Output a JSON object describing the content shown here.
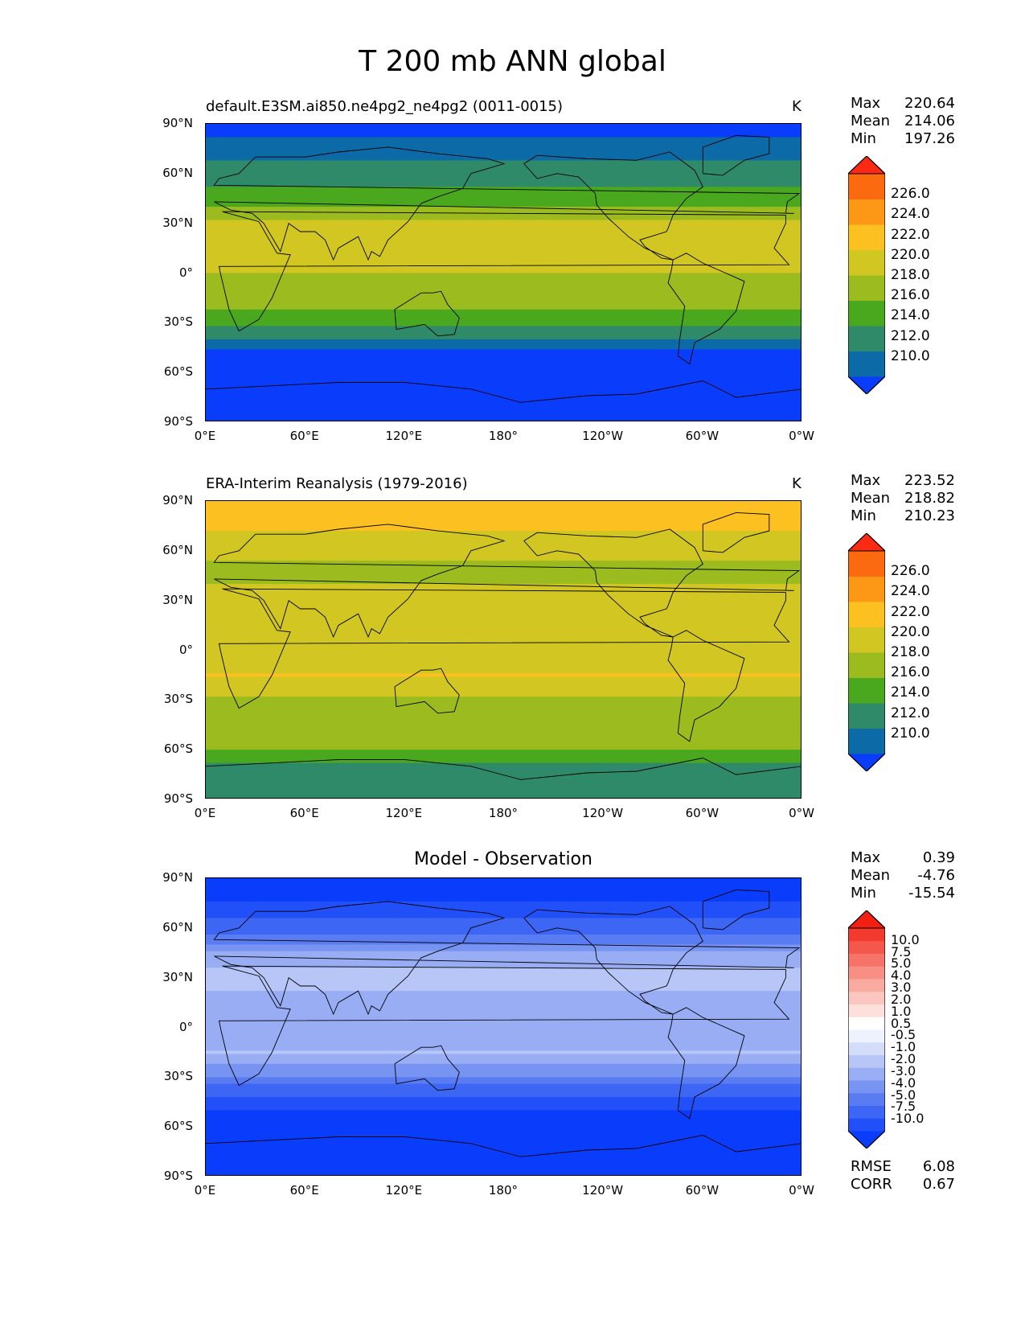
{
  "title": "T 200 mb ANN global",
  "ylabels": [
    "90°N",
    "60°N",
    "30°N",
    "0°",
    "30°S",
    "60°S",
    "90°S"
  ],
  "xlabels": [
    "0°E",
    "60°E",
    "120°E",
    "180°",
    "120°W",
    "60°W",
    "0°W"
  ],
  "panels": [
    {
      "title": "default.E3SM.ai850.ne4pg2_ne4pg2 (0011-0015)",
      "units": "K",
      "stats": {
        "max_label": "Max",
        "max": "220.64",
        "mean_label": "Mean",
        "mean": "214.06",
        "min_label": "Min",
        "min": "197.26"
      },
      "colorbar": {
        "colors": [
          "#0a3cfb",
          "#0c6aa6",
          "#2f8a6a",
          "#4aa81e",
          "#9bbb1e",
          "#d2c622",
          "#fcc020",
          "#fc9815",
          "#fc6a10",
          "#fc2a12"
        ],
        "labels": [
          "210.0",
          "212.0",
          "214.0",
          "216.0",
          "218.0",
          "220.0",
          "222.0",
          "224.0",
          "226.0"
        ]
      }
    },
    {
      "title": "ERA-Interim Reanalysis (1979-2016)",
      "units": "K",
      "stats": {
        "max_label": "Max",
        "max": "223.52",
        "mean_label": "Mean",
        "mean": "218.82",
        "min_label": "Min",
        "min": "210.23"
      },
      "colorbar": {
        "colors": [
          "#0a3cfb",
          "#0c6aa6",
          "#2f8a6a",
          "#4aa81e",
          "#9bbb1e",
          "#d2c622",
          "#fcc020",
          "#fc9815",
          "#fc6a10",
          "#fc2a12"
        ],
        "labels": [
          "210.0",
          "212.0",
          "214.0",
          "216.0",
          "218.0",
          "220.0",
          "222.0",
          "224.0",
          "226.0"
        ]
      }
    },
    {
      "title": "Model - Observation",
      "units": "",
      "stats": {
        "max_label": "Max",
        "max": "0.39",
        "mean_label": "Mean",
        "mean": "-4.76",
        "min_label": "Min",
        "min": "-15.54"
      },
      "colorbar": {
        "colors": [
          "#0a3cfb",
          "#2250f8",
          "#3e66f5",
          "#5a7cf2",
          "#7894f2",
          "#98adf4",
          "#b7c6f6",
          "#d3ddf9",
          "#eef2fd",
          "#ffffff",
          "#fde0dc",
          "#fbc6bf",
          "#f9aba2",
          "#f78f85",
          "#f57368",
          "#f4574b",
          "#f23b2e",
          "#f21f12"
        ],
        "labels": [
          "-10.0",
          "-7.5",
          "-5.0",
          "-4.0",
          "-3.0",
          "-2.0",
          "-1.0",
          "-0.5",
          "0.5",
          "1.0",
          "2.0",
          "3.0",
          "4.0",
          "5.0",
          "7.5",
          "10.0"
        ]
      },
      "rmse_label": "RMSE",
      "rmse": "6.08",
      "corr_label": "CORR",
      "corr": "0.67"
    }
  ],
  "chart_data": [
    {
      "type": "heatmap",
      "title": "default.E3SM.ai850.ne4pg2_ne4pg2 (0011-0015)",
      "units": "K",
      "xlabel": "",
      "ylabel": "",
      "x_ticks": [
        "0°E",
        "60°E",
        "120°E",
        "180°",
        "120°W",
        "60°W",
        "0°W"
      ],
      "y_ticks": [
        "90°N",
        "60°N",
        "30°N",
        "0°",
        "30°S",
        "60°S",
        "90°S"
      ],
      "xlim": [
        0,
        360
      ],
      "ylim": [
        -90,
        90
      ],
      "levels": [
        210,
        212,
        214,
        216,
        218,
        220,
        222,
        224,
        226
      ],
      "stats": {
        "max": 220.64,
        "mean": 214.06,
        "min": 197.26
      },
      "zonal_profile": {
        "lat": [
          90,
          75,
          60,
          45,
          30,
          15,
          0,
          -15,
          -30,
          -38,
          -45,
          -60,
          -75,
          -90
        ],
        "value": [
          209,
          211,
          213,
          215,
          218.5,
          219,
          218,
          217,
          214.5,
          212.5,
          210,
          209,
          209,
          209
        ]
      }
    },
    {
      "type": "heatmap",
      "title": "ERA-Interim Reanalysis (1979-2016)",
      "units": "K",
      "xlabel": "",
      "ylabel": "",
      "x_ticks": [
        "0°E",
        "60°E",
        "120°E",
        "180°",
        "120°W",
        "60°W",
        "0°W"
      ],
      "y_ticks": [
        "90°N",
        "60°N",
        "30°N",
        "0°",
        "30°S",
        "60°S",
        "90°S"
      ],
      "xlim": [
        0,
        360
      ],
      "ylim": [
        -90,
        90
      ],
      "levels": [
        210,
        212,
        214,
        216,
        218,
        220,
        222,
        224,
        226
      ],
      "stats": {
        "max": 223.52,
        "mean": 218.82,
        "min": 210.23
      },
      "zonal_profile": {
        "lat": [
          90,
          75,
          60,
          45,
          30,
          15,
          0,
          -15,
          -30,
          -45,
          -60,
          -68,
          -75,
          -90
        ],
        "value": [
          221,
          220.5,
          218.5,
          217,
          219.5,
          219,
          218.5,
          220,
          217.5,
          217.5,
          216,
          214,
          212.5,
          212.5
        ]
      }
    },
    {
      "type": "heatmap",
      "title": "Model - Observation",
      "units": "",
      "xlabel": "",
      "ylabel": "",
      "x_ticks": [
        "0°E",
        "60°E",
        "120°E",
        "180°",
        "120°W",
        "60°W",
        "0°W"
      ],
      "y_ticks": [
        "90°N",
        "60°N",
        "30°N",
        "0°",
        "30°S",
        "60°S",
        "90°S"
      ],
      "xlim": [
        0,
        360
      ],
      "ylim": [
        -90,
        90
      ],
      "levels": [
        -10,
        -7.5,
        -5,
        -4,
        -3,
        -2,
        -1,
        -0.5,
        0.5,
        1,
        2,
        3,
        4,
        5,
        7.5,
        10
      ],
      "stats": {
        "max": 0.39,
        "mean": -4.76,
        "min": -15.54,
        "rmse": 6.08,
        "corr": 0.67
      },
      "zonal_profile": {
        "lat": [
          90,
          75,
          60,
          45,
          30,
          15,
          0,
          -15,
          -30,
          -38,
          -45,
          -60,
          -75,
          -90
        ],
        "value": [
          -12,
          -10,
          -6,
          -3,
          -1.5,
          -2.5,
          -3,
          -2,
          -4,
          -6,
          -9,
          -12,
          -12,
          -12
        ]
      }
    }
  ]
}
